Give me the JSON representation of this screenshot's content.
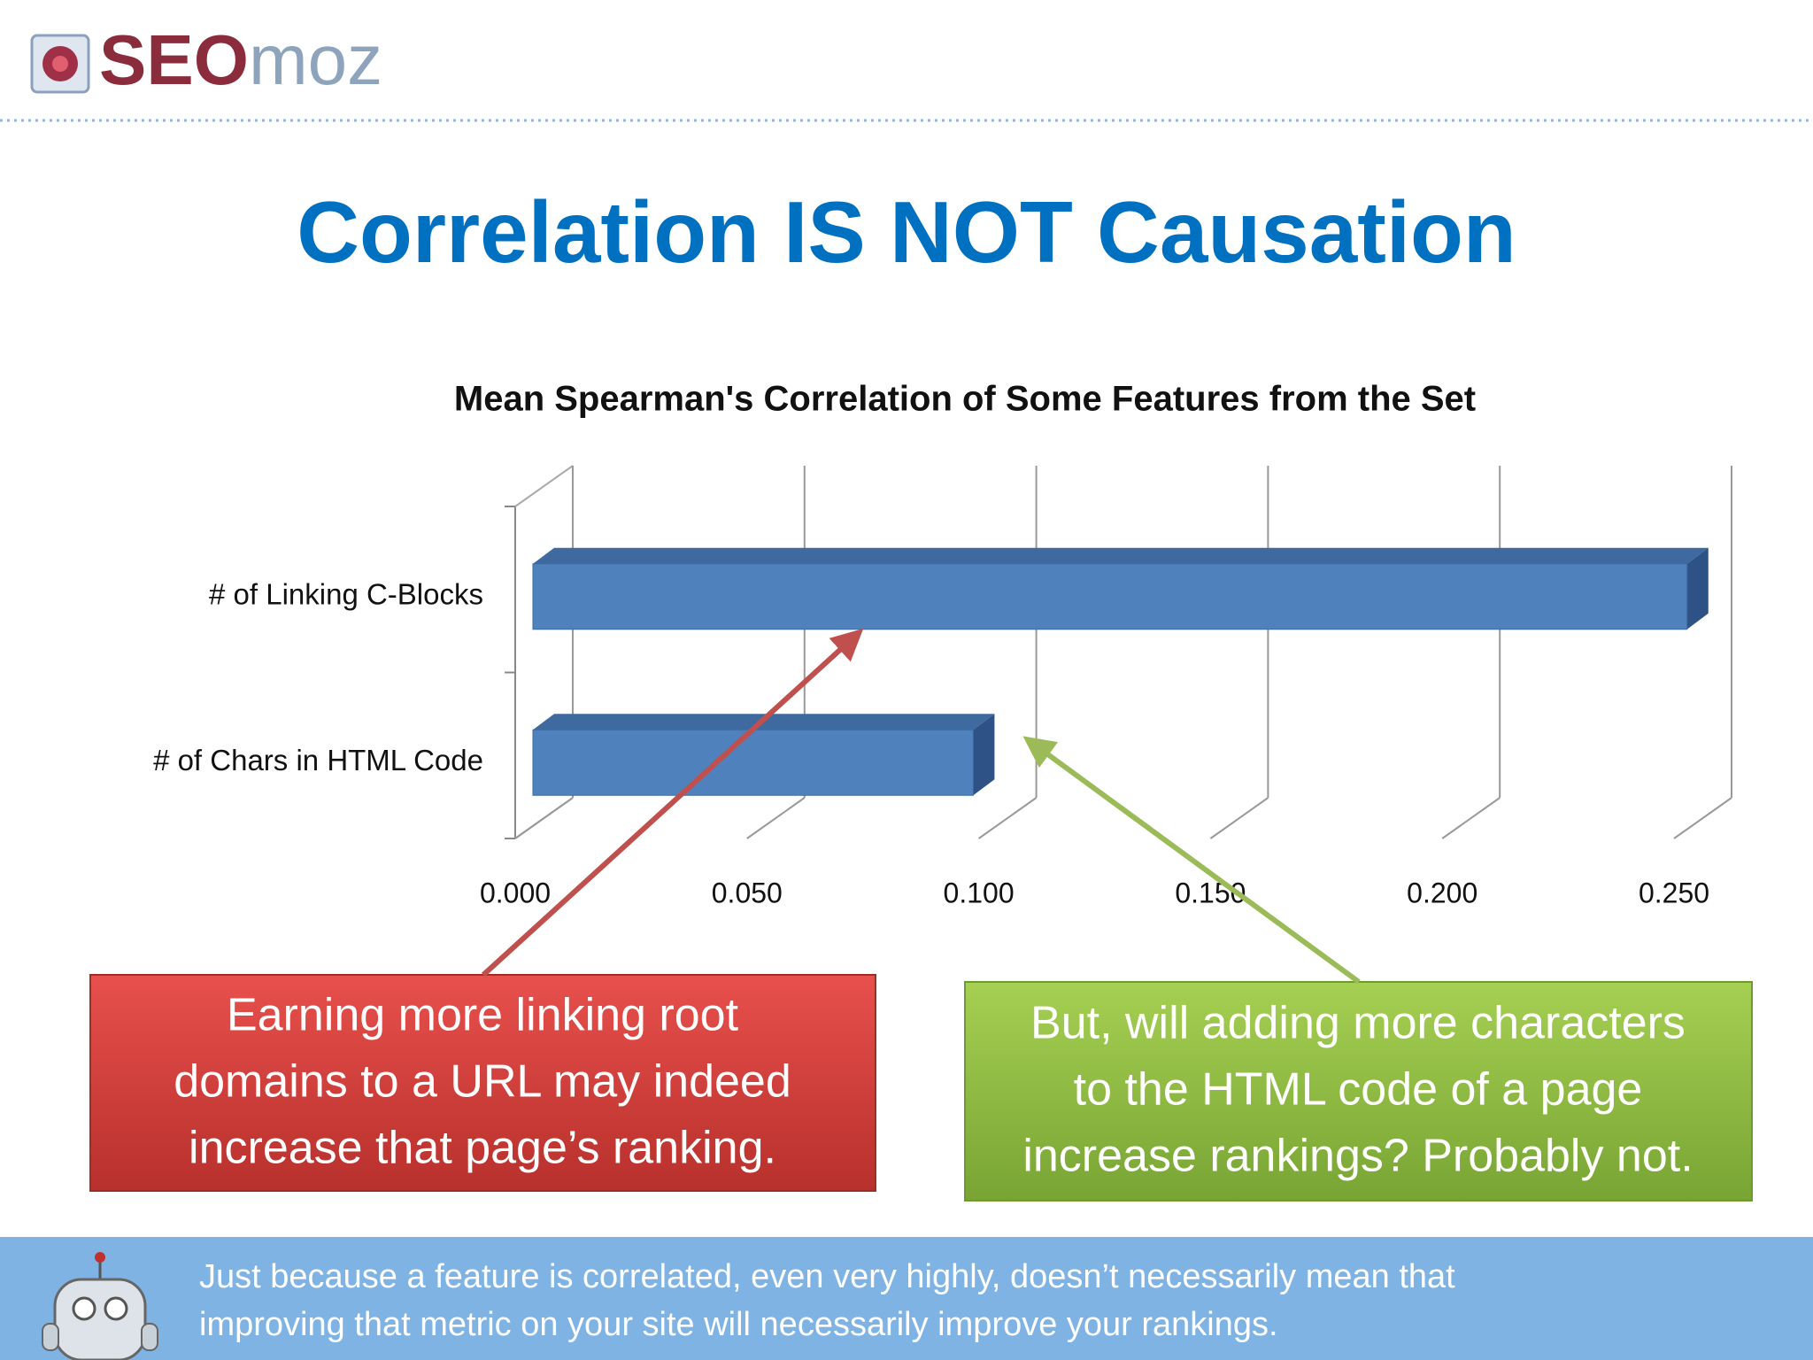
{
  "logo": {
    "brand_bold": "SEO",
    "brand_light": "moz"
  },
  "slide_title": "Correlation IS NOT Causation",
  "chart_data": {
    "type": "bar",
    "orientation": "horizontal",
    "title": "Mean Spearman's Correlation of Some Features from the Set",
    "categories": [
      "# of Linking C-Blocks",
      "# of Chars in HTML Code"
    ],
    "values": [
      0.249,
      0.095
    ],
    "color": "#4f81bd",
    "xlim": [
      0,
      0.25
    ],
    "xticks": [
      {
        "value": 0,
        "label": "0.000"
      },
      {
        "value": 0.05,
        "label": "0.050"
      },
      {
        "value": 0.1,
        "label": "0.100"
      },
      {
        "value": 0.15,
        "label": "0.150"
      },
      {
        "value": 0.2,
        "label": "0.200"
      },
      {
        "value": 0.25,
        "label": "0.250"
      }
    ],
    "grid": true
  },
  "callouts": [
    {
      "lines": [
        "Earning more linking root",
        "domains to a URL may indeed",
        "increase that page’s ranking."
      ]
    },
    {
      "lines": [
        "But, will adding more characters",
        "to the HTML code of a page",
        "increase rankings? Probably not."
      ]
    }
  ],
  "footer": {
    "lines": [
      "Just because a feature is correlated, even very highly, doesn’t necessarily mean that",
      "improving that metric on your site will necessarily improve your rankings."
    ]
  }
}
